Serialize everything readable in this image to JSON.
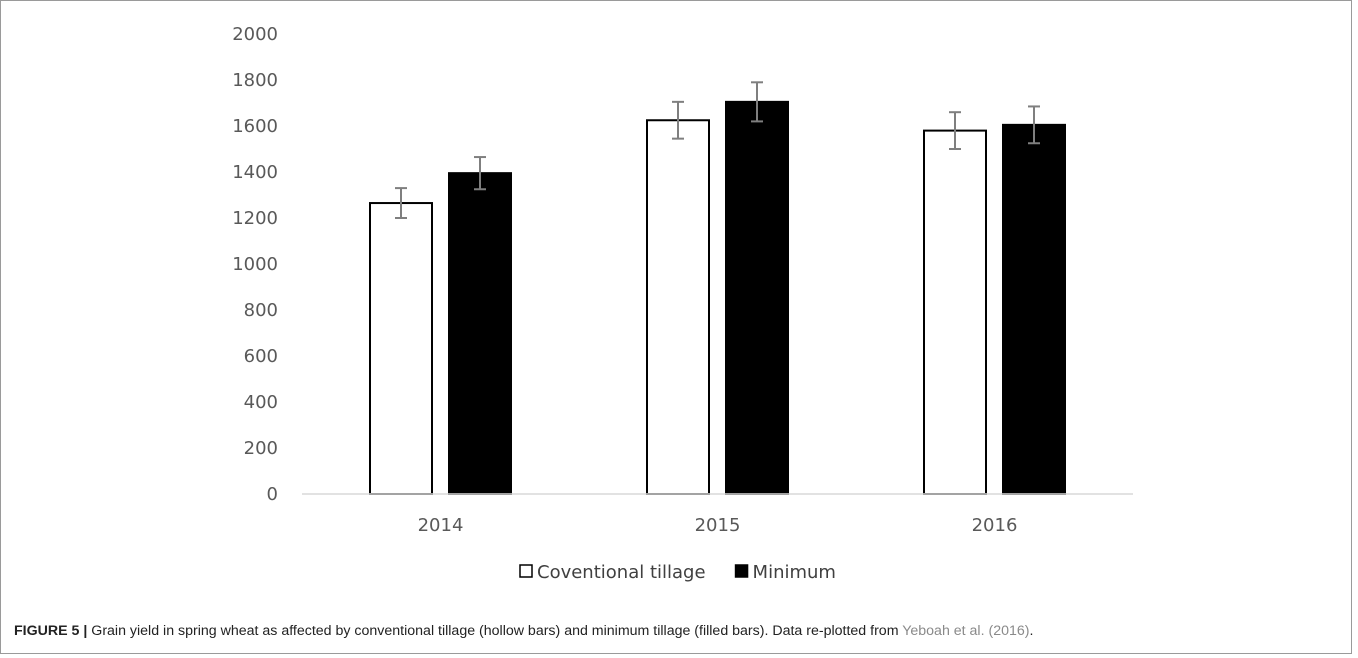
{
  "chart_data": {
    "type": "bar",
    "categories": [
      "2014",
      "2015",
      "2016"
    ],
    "series": [
      {
        "name": "Coventional tillage",
        "style": "hollow",
        "values": [
          1265,
          1625,
          1580
        ],
        "error": [
          65,
          80,
          80
        ]
      },
      {
        "name": "Minimum",
        "style": "filled",
        "values": [
          1395,
          1705,
          1605
        ],
        "error": [
          70,
          85,
          80
        ]
      }
    ],
    "ylim": [
      0,
      2000
    ],
    "yticks": [
      "0",
      "200",
      "400",
      "600",
      "800",
      "1000",
      "1200",
      "1400",
      "1600",
      "1800",
      "2000"
    ],
    "grid": false,
    "legend_position": "bottom-center",
    "colors": {
      "hollow_fill": "#ffffff",
      "filled_fill": "#000000",
      "bar_stroke": "#000000",
      "error_bar": "#7f7f7f",
      "axis": "#d9d9d9"
    }
  },
  "caption": {
    "label": "FIGURE 5 |",
    "text": " Grain yield in spring wheat as affected by conventional tillage (hollow bars) and minimum tillage (filled bars). Data re-plotted from ",
    "reference": "Yeboah et al. (2016)",
    "end": "."
  }
}
